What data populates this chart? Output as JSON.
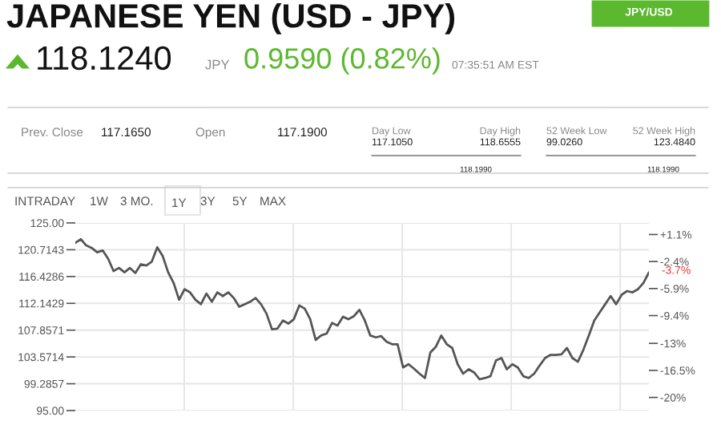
{
  "chart_data": {
    "type": "line",
    "title": "JAPANESE YEN (USD - JPY)",
    "annotations": [
      "118.1240",
      "JPY",
      "0.9590 (0.82%)",
      "07:35:51 AM EST",
      "JPY/USD",
      "Prev. Close",
      "117.1650",
      "Open",
      "117.1900",
      "Day Low",
      "117.1050",
      "Day High",
      "118.6555",
      "118.1990",
      "52 Week Low",
      "99.0260",
      "52 Week High",
      "123.4840",
      "118.1990",
      "INTRADAY",
      "1W",
      "3 MO.",
      "1Y",
      "3Y",
      "5Y",
      "MAX",
      "-3.7%"
    ],
    "categories": [
      null,
      null,
      null,
      null,
      null,
      null,
      null,
      null,
      null,
      null,
      null,
      null,
      null,
      null,
      null,
      null,
      null,
      null,
      null,
      null,
      null,
      null,
      null,
      null,
      null,
      null,
      null,
      null,
      null,
      null,
      null,
      null,
      null,
      null,
      null,
      null,
      null,
      null,
      null,
      null,
      null,
      null,
      null,
      null,
      null,
      null,
      null,
      null,
      null,
      null,
      null,
      null,
      null,
      null,
      null,
      null,
      null,
      null,
      null,
      null,
      null,
      null,
      null,
      null,
      null,
      null,
      null,
      null,
      null,
      null,
      null,
      null,
      null,
      null,
      null,
      null,
      null,
      null,
      null,
      null,
      null,
      null,
      null,
      null,
      null,
      null,
      null,
      null,
      null,
      null,
      null,
      null,
      null,
      null,
      null,
      null,
      null,
      null,
      null,
      null,
      null,
      null,
      null,
      null,
      null,
      null
    ],
    "series": [
      {
        "color": "#555555",
        "values": [
          121.8,
          122.4,
          121.4,
          121.0,
          120.3,
          120.6,
          119.3,
          117.3,
          117.8,
          117.1,
          117.8,
          117.0,
          118.4,
          118.2,
          118.8,
          121.1,
          119.7,
          117.1,
          115.4,
          112.7,
          114.4,
          113.9,
          112.7,
          112.0,
          113.7,
          112.4,
          113.9,
          113.3,
          113.9,
          113.0,
          111.6,
          112.0,
          112.4,
          113.0,
          112.0,
          110.5,
          108.0,
          108.1,
          109.4,
          108.9,
          109.6,
          111.8,
          111.3,
          109.6,
          106.3,
          107.0,
          107.3,
          109.0,
          108.6,
          110.0,
          109.6,
          110.1,
          111.1,
          109.4,
          107.0,
          106.7,
          106.9,
          106.0,
          105.6,
          105.6,
          101.9,
          102.4,
          101.7,
          100.9,
          100.2,
          104.3,
          105.2,
          107.0,
          105.6,
          105.0,
          102.4,
          100.9,
          101.6,
          101.1,
          100.0,
          100.2,
          100.5,
          103.0,
          103.4,
          101.6,
          102.4,
          101.9,
          100.5,
          100.2,
          100.9,
          102.2,
          103.4,
          103.9,
          103.9,
          104.0,
          105.0,
          103.4,
          102.8,
          104.7,
          107.0,
          109.4,
          110.7,
          112.0,
          113.3,
          112.0,
          113.5,
          114.1,
          113.9,
          114.4,
          115.4,
          117.1
        ]
      }
    ],
    "ylim": [
      95,
      125
    ],
    "yticks": [
      {
        "value": 95,
        "label": "95.00"
      },
      99.2857,
      103.5714,
      107.8571,
      112.1429,
      116.4286,
      120.7143,
      {
        "value": 125,
        "label": "125.00"
      }
    ],
    "y2lim": [
      -21.7,
      2.6
    ],
    "y2ticks": [
      {
        "value": -20,
        "label": "-20%"
      },
      {
        "value": -16.5,
        "label": "-16.5%"
      },
      {
        "value": -13,
        "label": "-13%"
      },
      {
        "value": -9.4,
        "label": "-9.4%"
      },
      {
        "value": -5.9,
        "label": "-5.9%"
      },
      {
        "value": -2.4,
        "label": "-2.4%"
      },
      {
        "value": 1.1,
        "label": "+1.1%"
      }
    ],
    "tick_labels": "y",
    "grid": true,
    "line_style": "solid"
  }
}
